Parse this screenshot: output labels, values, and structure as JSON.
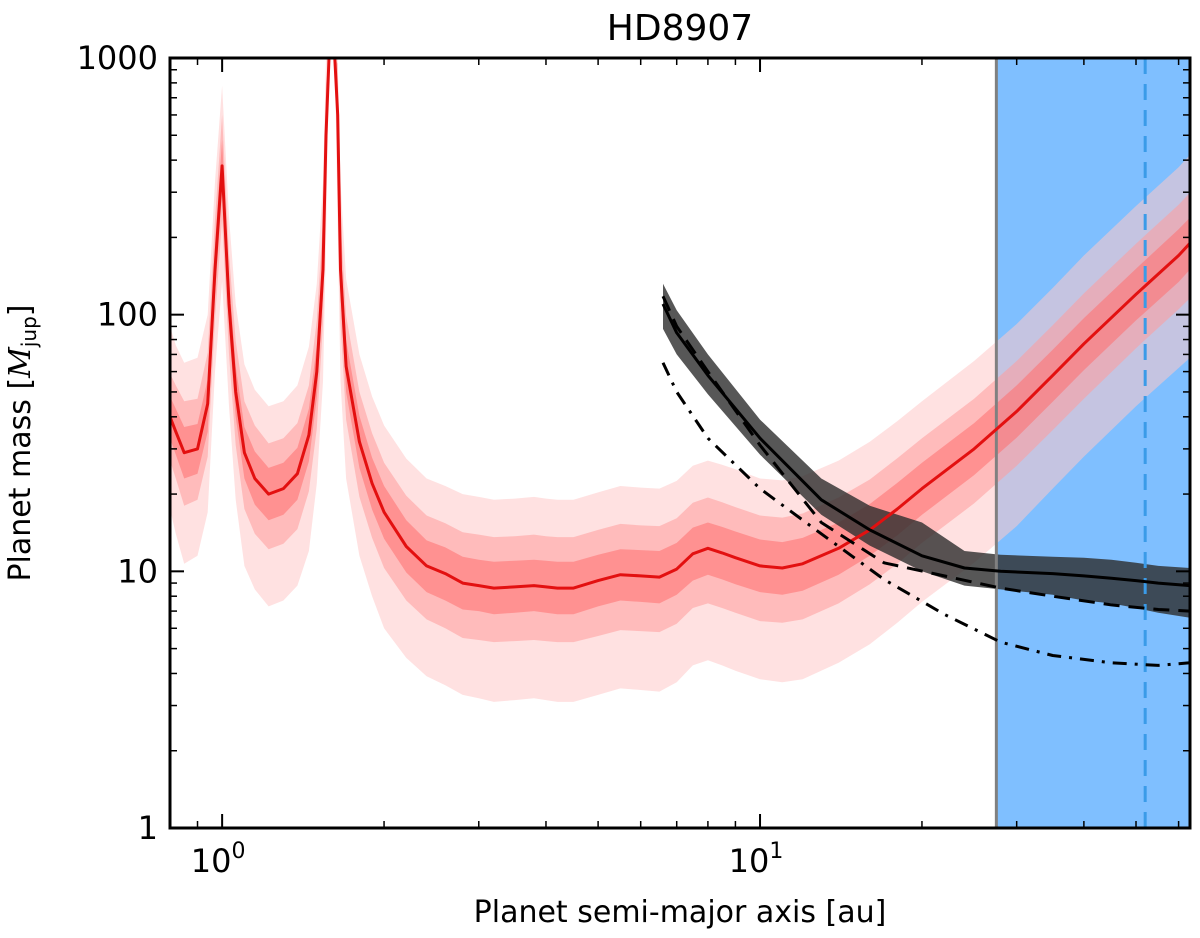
{
  "chart_data": {
    "type": "line",
    "title": "HD8907",
    "xlabel": "Planet semi-major axis [au]",
    "ylabel_main": "Planet mass [",
    "ylabel_symbol": "M",
    "ylabel_sub": "jup",
    "ylabel_end": "]",
    "x_scale": "log",
    "y_scale": "log",
    "xlim": [
      0.8,
      63
    ],
    "ylim": [
      1,
      1000
    ],
    "x_ticks": [
      {
        "value": 1,
        "base": "10",
        "exp": "0"
      },
      {
        "value": 10,
        "base": "10",
        "exp": "1"
      }
    ],
    "y_ticks": [
      {
        "value": 1,
        "label": "1"
      },
      {
        "value": 10,
        "label": "10"
      },
      {
        "value": 100,
        "label": "100"
      },
      {
        "value": 1000,
        "label": "1000"
      }
    ],
    "shaded_region": {
      "x_start": 27.5,
      "x_end": 63,
      "color": "#7fbfff"
    },
    "vertical_lines": [
      {
        "name": "region-boundary",
        "x": 27.5,
        "style": "solid",
        "color": "#808080"
      },
      {
        "name": "reference-dashed",
        "x": 52,
        "style": "dashed",
        "color": "#3a9be8"
      }
    ],
    "series": [
      {
        "name": "RV-median-limit",
        "style": "solid",
        "color": "#e31010",
        "x": [
          0.8,
          0.82,
          0.85,
          0.9,
          0.94,
          0.97,
          1.0,
          1.03,
          1.06,
          1.1,
          1.15,
          1.22,
          1.3,
          1.38,
          1.45,
          1.5,
          1.54,
          1.56,
          1.58,
          1.6,
          1.62,
          1.64,
          1.66,
          1.7,
          1.8,
          1.9,
          2.0,
          2.2,
          2.4,
          2.6,
          2.8,
          3.0,
          3.2,
          3.5,
          3.8,
          4.0,
          4.2,
          4.5,
          5.0,
          5.5,
          6.0,
          6.5,
          7.0,
          7.5,
          8.0,
          8.5,
          9.0,
          10.0,
          11.0,
          12.0,
          14.0,
          16.0,
          18.0,
          20.0,
          25.0,
          30.0,
          35.0,
          40.0,
          50.0,
          60.0,
          63.0
        ],
        "y": [
          40,
          35,
          29,
          30,
          45,
          150,
          380,
          110,
          50,
          29,
          23,
          20,
          21,
          24,
          34,
          60,
          150,
          500,
          1000,
          1000,
          1000,
          600,
          150,
          63,
          32,
          22,
          17,
          12.5,
          10.5,
          9.8,
          9.0,
          8.8,
          8.6,
          8.7,
          8.8,
          8.7,
          8.6,
          8.6,
          9.2,
          9.7,
          9.6,
          9.5,
          10.2,
          11.7,
          12.3,
          11.8,
          11.3,
          10.5,
          10.3,
          10.7,
          12.3,
          14.5,
          17.5,
          21,
          30,
          42,
          58,
          77,
          120,
          170,
          190
        ]
      },
      {
        "name": "imaging-median-limit",
        "style": "solid",
        "color": "#000000",
        "x": [
          6.6,
          7.0,
          8.0,
          10.0,
          13.0,
          16.0,
          20.0,
          24.0,
          28.0,
          35.0,
          40.0,
          45.0,
          50.0,
          55.0,
          63.0
        ],
        "y": [
          110,
          85,
          58,
          33,
          19,
          14.5,
          11.5,
          10.3,
          10.0,
          9.8,
          9.6,
          9.4,
          9.2,
          9.0,
          8.8
        ]
      },
      {
        "name": "imaging-dashed-limit",
        "style": "dashed",
        "color": "#000000",
        "x": [
          6.6,
          7.0,
          8.0,
          10.0,
          13.0,
          17.0,
          22.0,
          28.0,
          35.0,
          45.0,
          55.0,
          63.0
        ],
        "y": [
          118,
          90,
          60,
          31,
          15.5,
          10.8,
          9.6,
          8.6,
          8.0,
          7.4,
          7.1,
          7.0
        ]
      },
      {
        "name": "imaging-dashdot-limit",
        "style": "dashdot",
        "color": "#000000",
        "x": [
          6.6,
          7.0,
          8.0,
          10.0,
          13.0,
          17.0,
          22.0,
          28.0,
          35.0,
          45.0,
          55.0,
          63.0
        ],
        "y": [
          65,
          50,
          33,
          21,
          14,
          9.3,
          6.8,
          5.3,
          4.7,
          4.4,
          4.3,
          4.4
        ]
      }
    ],
    "bands": [
      {
        "name": "RV-band-outer",
        "color": "#ffc9c9",
        "x": [
          0.8,
          0.82,
          0.85,
          0.9,
          0.94,
          0.97,
          1.0,
          1.03,
          1.06,
          1.1,
          1.15,
          1.22,
          1.3,
          1.38,
          1.45,
          1.5,
          1.54,
          1.56,
          1.58,
          1.6,
          1.62,
          1.64,
          1.66,
          1.7,
          1.8,
          1.9,
          2.0,
          2.2,
          2.4,
          2.6,
          2.8,
          3.0,
          3.2,
          3.5,
          3.8,
          4.0,
          4.2,
          4.5,
          5.0,
          5.5,
          6.0,
          6.5,
          7.0,
          7.5,
          8.0,
          8.5,
          9.0,
          10.0,
          11.0,
          12.0,
          14.0,
          16.0,
          18.0,
          20.0,
          25.0,
          30.0,
          35.0,
          40.0,
          50.0,
          60.0,
          63.0
        ],
        "low": [
          17.5,
          14,
          10.7,
          11.5,
          17,
          60,
          135,
          44,
          19,
          10.5,
          8.5,
          7.3,
          7.7,
          8.8,
          12,
          22,
          55,
          190,
          1000,
          1000,
          1000,
          220,
          55,
          23,
          11.5,
          8,
          6,
          4.6,
          3.9,
          3.6,
          3.3,
          3.2,
          3.1,
          3.15,
          3.2,
          3.15,
          3.1,
          3.1,
          3.3,
          3.5,
          3.45,
          3.4,
          3.7,
          4.3,
          4.5,
          4.3,
          4.1,
          3.8,
          3.7,
          3.8,
          4.4,
          5.2,
          6.3,
          7.6,
          10.8,
          15,
          21,
          28,
          44,
          62,
          68
        ],
        "high": [
          90,
          76,
          65,
          68,
          100,
          330,
          780,
          240,
          110,
          64,
          51,
          44,
          46,
          53,
          75,
          132,
          330,
          1000,
          1000,
          1000,
          1000,
          1000,
          330,
          138,
          70,
          48,
          37,
          27.5,
          23,
          21.5,
          20,
          19.5,
          19,
          19.2,
          19.5,
          19.2,
          19,
          19,
          20.3,
          21.5,
          21.2,
          21,
          22.5,
          25.8,
          27,
          26,
          25,
          23,
          22.6,
          23.5,
          27,
          32,
          38.5,
          46,
          66,
          92,
          127,
          170,
          265,
          375,
          420
        ]
      },
      {
        "name": "RV-band-inner",
        "color": "#ff9c9c",
        "x": [
          0.8,
          0.82,
          0.85,
          0.9,
          0.94,
          0.97,
          1.0,
          1.03,
          1.06,
          1.1,
          1.15,
          1.22,
          1.3,
          1.38,
          1.45,
          1.5,
          1.54,
          1.56,
          1.58,
          1.6,
          1.62,
          1.64,
          1.66,
          1.7,
          1.8,
          1.9,
          2.0,
          2.2,
          2.4,
          2.6,
          2.8,
          3.0,
          3.2,
          3.5,
          3.8,
          4.0,
          4.2,
          4.5,
          5.0,
          5.5,
          6.0,
          6.5,
          7.0,
          7.5,
          8.0,
          8.5,
          9.0,
          10.0,
          11.0,
          12.0,
          14.0,
          16.0,
          18.0,
          20.0,
          25.0,
          30.0,
          35.0,
          40.0,
          50.0,
          60.0,
          63.0
        ],
        "low": [
          27,
          23,
          18,
          19,
          28,
          96,
          235,
          70,
          31,
          17.5,
          14,
          12.2,
          12.8,
          14.6,
          20.5,
          36,
          93,
          310,
          1000,
          1000,
          1000,
          370,
          93,
          39,
          19.5,
          13.5,
          10.3,
          7.7,
          6.5,
          6.0,
          5.5,
          5.4,
          5.3,
          5.35,
          5.4,
          5.35,
          5.3,
          5.3,
          5.6,
          5.9,
          5.85,
          5.8,
          6.25,
          7.2,
          7.5,
          7.2,
          6.9,
          6.4,
          6.3,
          6.5,
          7.5,
          8.9,
          10.7,
          12.9,
          18.4,
          25.8,
          35.5,
          47,
          74,
          105,
          116
        ],
        "high": [
          59,
          53,
          46,
          47,
          71,
          235,
          600,
          173,
          79,
          46,
          37,
          31.5,
          33,
          37.8,
          53,
          95,
          235,
          790,
          1000,
          1000,
          1000,
          950,
          235,
          99,
          50,
          34.5,
          26.5,
          19.7,
          16.5,
          15.4,
          14.2,
          13.9,
          13.6,
          13.7,
          13.9,
          13.7,
          13.6,
          13.6,
          14.5,
          15.3,
          15.1,
          15,
          16.1,
          18.5,
          19.4,
          18.6,
          17.8,
          16.5,
          16.2,
          16.8,
          19.4,
          22.8,
          27.6,
          33,
          47,
          66,
          91,
          121,
          189,
          268,
          299
        ]
      },
      {
        "name": "RV-band-core",
        "color": "#ff7070",
        "x": [
          0.8,
          0.82,
          0.85,
          0.9,
          0.94,
          0.97,
          1.0,
          1.03,
          1.06,
          1.1,
          1.15,
          1.22,
          1.3,
          1.38,
          1.45,
          1.5,
          1.54,
          1.56,
          1.58,
          1.6,
          1.62,
          1.64,
          1.66,
          1.7,
          1.8,
          1.9,
          2.0,
          2.2,
          2.4,
          2.6,
          2.8,
          3.0,
          3.2,
          3.5,
          3.8,
          4.0,
          4.2,
          4.5,
          5.0,
          5.5,
          6.0,
          6.5,
          7.0,
          7.5,
          8.0,
          8.5,
          9.0,
          10.0,
          11.0,
          12.0,
          14.0,
          16.0,
          18.0,
          20.0,
          25.0,
          30.0,
          35.0,
          40.0,
          50.0,
          60.0,
          63.0
        ],
        "low": [
          33,
          28.5,
          23,
          24,
          35,
          120,
          300,
          88,
          40,
          23,
          18.2,
          15.8,
          16.6,
          19,
          26.8,
          47.5,
          119,
          395,
          1000,
          1000,
          1000,
          475,
          119,
          50,
          25.3,
          17.4,
          13.4,
          9.9,
          8.3,
          7.7,
          7.1,
          7.0,
          6.8,
          6.9,
          7.0,
          6.9,
          6.8,
          6.8,
          7.3,
          7.7,
          7.6,
          7.5,
          8.1,
          9.2,
          9.7,
          9.3,
          8.9,
          8.3,
          8.1,
          8.4,
          9.7,
          11.5,
          13.8,
          16.6,
          23.7,
          33.2,
          45.8,
          60.8,
          95,
          134,
          150
        ],
        "high": [
          48,
          43,
          36.5,
          37.5,
          56,
          188,
          480,
          138,
          63,
          36.5,
          29.3,
          25.3,
          26.5,
          30.3,
          43,
          76,
          188,
          630,
          1000,
          1000,
          1000,
          760,
          188,
          79.5,
          40.4,
          27.7,
          21.5,
          15.8,
          13.2,
          12.4,
          11.4,
          11.1,
          10.9,
          11,
          11.1,
          11,
          10.9,
          10.9,
          11.6,
          12.2,
          12.1,
          12,
          12.9,
          14.8,
          15.5,
          14.9,
          14.3,
          13.3,
          13,
          13.5,
          15.5,
          18.3,
          22.1,
          26.5,
          37.8,
          53,
          73,
          97,
          151,
          215,
          239
        ]
      },
      {
        "name": "imaging-band",
        "color": "#2d2d2d",
        "x": [
          6.6,
          7.0,
          8.0,
          10.0,
          13.0,
          16.0,
          20.0,
          24.0,
          28.0,
          35.0,
          40.0,
          45.0,
          50.0,
          55.0,
          63.0
        ],
        "low": [
          88,
          70,
          49,
          28.5,
          16.6,
          12.6,
          10.0,
          8.8,
          8.5,
          8.1,
          7.7,
          7.5,
          7.2,
          6.9,
          6.6
        ],
        "high": [
          132,
          104,
          70,
          39,
          23,
          18.0,
          15.5,
          12.0,
          11.6,
          11.4,
          11.3,
          11.1,
          10.8,
          10.5,
          10.3
        ]
      }
    ]
  }
}
